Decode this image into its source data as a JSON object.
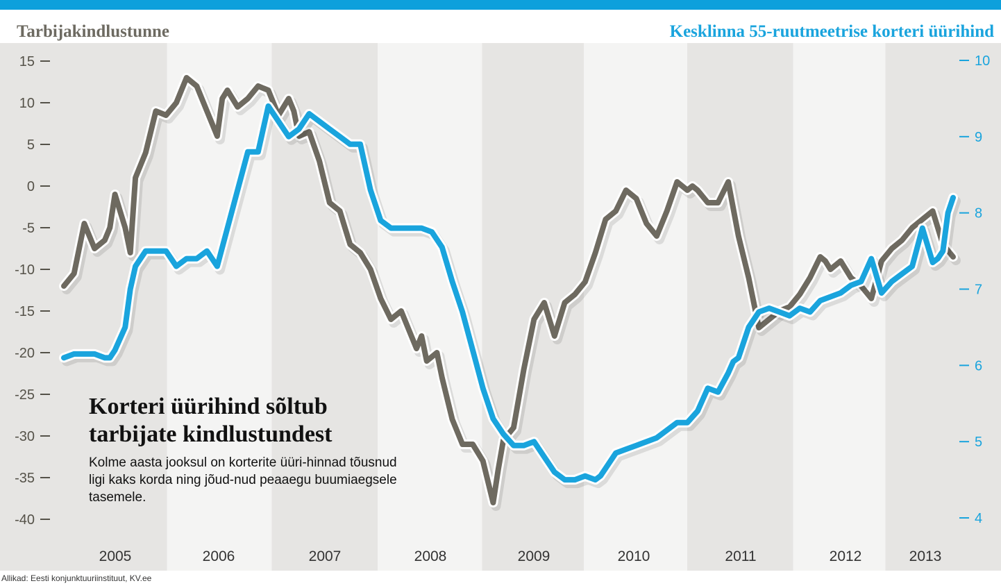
{
  "header": {
    "accent_color": "#0da0dc"
  },
  "chart_data": {
    "type": "line",
    "title": "Korteri üürihind sõltub tarbijate kindlustundest",
    "subtitle": "Kolme aasta jooksul on korterite üüri-hinnad tõusnud ligi kaks korda ning jõud-nud peaaegu buumiaegsele tasemele.",
    "source": "Allikad: Eesti konjunktuuriinstituut, KV.ee",
    "left_axis": {
      "title": "Tarbijakindlustunne",
      "ylim": [
        -40,
        15
      ],
      "ticks": [
        15,
        10,
        5,
        0,
        -5,
        -10,
        -15,
        -20,
        -25,
        -30,
        -35,
        -40
      ],
      "tick_labels": [
        "15",
        "10",
        "5",
        "0",
        "-5",
        "-10",
        "-15",
        "-20",
        "-25",
        "-30",
        "-35",
        "-40"
      ]
    },
    "right_axis": {
      "title": "Kesklinna 55-ruutmeetrise korteri üürihind",
      "ylim": [
        4,
        10
      ],
      "ticks": [
        10,
        9,
        8,
        7,
        6,
        5,
        4
      ],
      "tick_labels": [
        "10",
        "9",
        "8",
        "7",
        "6",
        "5",
        "4"
      ]
    },
    "x_axis": {
      "labels": [
        "2005",
        "2006",
        "2007",
        "2008",
        "2009",
        "2010",
        "2011",
        "2012",
        "2013"
      ],
      "range": [
        2004.6,
        2013.3
      ]
    },
    "colors": {
      "confidence": "#6e6a60",
      "rent": "#1aa4dd",
      "band_light": "#e6e5e3",
      "band_dark": "#f4f4f3"
    },
    "series": [
      {
        "key": "confidence",
        "axis": "left",
        "values": [
          [
            2004.6,
            -12
          ],
          [
            2004.7,
            -10.5
          ],
          [
            2004.8,
            -4.5
          ],
          [
            2004.9,
            -7.5
          ],
          [
            2005.0,
            -6.5
          ],
          [
            2005.05,
            -5
          ],
          [
            2005.1,
            -1
          ],
          [
            2005.2,
            -5
          ],
          [
            2005.25,
            -8
          ],
          [
            2005.3,
            1
          ],
          [
            2005.4,
            4
          ],
          [
            2005.5,
            9
          ],
          [
            2005.6,
            8.5
          ],
          [
            2005.7,
            10
          ],
          [
            2005.8,
            13
          ],
          [
            2005.9,
            12
          ],
          [
            2006.0,
            9
          ],
          [
            2006.1,
            6
          ],
          [
            2006.15,
            10.5
          ],
          [
            2006.2,
            11.5
          ],
          [
            2006.3,
            9.5
          ],
          [
            2006.4,
            10.5
          ],
          [
            2006.5,
            12
          ],
          [
            2006.6,
            11.5
          ],
          [
            2006.65,
            10
          ],
          [
            2006.7,
            8.5
          ],
          [
            2006.8,
            10.5
          ],
          [
            2006.85,
            9
          ],
          [
            2006.9,
            6
          ],
          [
            2007.0,
            6.5
          ],
          [
            2007.1,
            3
          ],
          [
            2007.2,
            -2
          ],
          [
            2007.3,
            -3
          ],
          [
            2007.35,
            -5
          ],
          [
            2007.4,
            -7
          ],
          [
            2007.5,
            -8
          ],
          [
            2007.6,
            -10
          ],
          [
            2007.7,
            -13.5
          ],
          [
            2007.8,
            -16
          ],
          [
            2007.9,
            -15
          ],
          [
            2008.0,
            -18
          ],
          [
            2008.05,
            -19.5
          ],
          [
            2008.1,
            -18
          ],
          [
            2008.15,
            -21
          ],
          [
            2008.25,
            -20
          ],
          [
            2008.3,
            -23
          ],
          [
            2008.4,
            -28
          ],
          [
            2008.5,
            -31
          ],
          [
            2008.6,
            -31
          ],
          [
            2008.7,
            -33
          ],
          [
            2008.8,
            -38
          ],
          [
            2008.85,
            -34
          ],
          [
            2008.9,
            -30.5
          ],
          [
            2009.0,
            -29
          ],
          [
            2009.1,
            -22
          ],
          [
            2009.2,
            -16
          ],
          [
            2009.3,
            -14
          ],
          [
            2009.4,
            -18
          ],
          [
            2009.5,
            -14
          ],
          [
            2009.6,
            -13
          ],
          [
            2009.7,
            -11.5
          ],
          [
            2009.8,
            -8
          ],
          [
            2009.9,
            -4
          ],
          [
            2010.0,
            -3
          ],
          [
            2010.1,
            -0.5
          ],
          [
            2010.2,
            -1.5
          ],
          [
            2010.3,
            -4.5
          ],
          [
            2010.4,
            -6
          ],
          [
            2010.5,
            -3
          ],
          [
            2010.6,
            0.5
          ],
          [
            2010.7,
            -0.5
          ],
          [
            2010.75,
            0
          ],
          [
            2010.8,
            -0.5
          ],
          [
            2010.9,
            -2
          ],
          [
            2011.0,
            -2
          ],
          [
            2011.1,
            0.5
          ],
          [
            2011.2,
            -6
          ],
          [
            2011.3,
            -11
          ],
          [
            2011.4,
            -17
          ],
          [
            2011.5,
            -16
          ],
          [
            2011.6,
            -15
          ],
          [
            2011.7,
            -14.5
          ],
          [
            2011.8,
            -13
          ],
          [
            2011.9,
            -11
          ],
          [
            2012.0,
            -8.5
          ],
          [
            2012.05,
            -9
          ],
          [
            2012.1,
            -10
          ],
          [
            2012.2,
            -9
          ],
          [
            2012.3,
            -11
          ],
          [
            2012.4,
            -12
          ],
          [
            2012.5,
            -13.5
          ],
          [
            2012.6,
            -9
          ],
          [
            2012.7,
            -7.5
          ],
          [
            2012.8,
            -6.5
          ],
          [
            2012.9,
            -5
          ],
          [
            2013.0,
            -4
          ],
          [
            2013.1,
            -3
          ],
          [
            2013.2,
            -7
          ],
          [
            2013.3,
            -8.5
          ]
        ]
      },
      {
        "key": "rent",
        "axis": "right",
        "values": [
          [
            2004.6,
            6.1
          ],
          [
            2004.7,
            6.15
          ],
          [
            2004.8,
            6.15
          ],
          [
            2004.9,
            6.15
          ],
          [
            2005.0,
            6.1
          ],
          [
            2005.05,
            6.1
          ],
          [
            2005.1,
            6.2
          ],
          [
            2005.2,
            6.5
          ],
          [
            2005.25,
            7.0
          ],
          [
            2005.3,
            7.3
          ],
          [
            2005.4,
            7.5
          ],
          [
            2005.5,
            7.5
          ],
          [
            2005.6,
            7.5
          ],
          [
            2005.7,
            7.3
          ],
          [
            2005.8,
            7.4
          ],
          [
            2005.9,
            7.4
          ],
          [
            2006.0,
            7.5
          ],
          [
            2006.1,
            7.3
          ],
          [
            2006.2,
            7.8
          ],
          [
            2006.3,
            8.3
          ],
          [
            2006.4,
            8.8
          ],
          [
            2006.5,
            8.8
          ],
          [
            2006.6,
            9.4
          ],
          [
            2006.7,
            9.2
          ],
          [
            2006.8,
            9.0
          ],
          [
            2006.9,
            9.1
          ],
          [
            2007.0,
            9.3
          ],
          [
            2007.1,
            9.2
          ],
          [
            2007.2,
            9.1
          ],
          [
            2007.3,
            9.0
          ],
          [
            2007.4,
            8.9
          ],
          [
            2007.5,
            8.9
          ],
          [
            2007.6,
            8.3
          ],
          [
            2007.7,
            7.9
          ],
          [
            2007.8,
            7.8
          ],
          [
            2007.9,
            7.8
          ],
          [
            2008.0,
            7.8
          ],
          [
            2008.1,
            7.8
          ],
          [
            2008.2,
            7.75
          ],
          [
            2008.3,
            7.55
          ],
          [
            2008.4,
            7.1
          ],
          [
            2008.5,
            6.7
          ],
          [
            2008.6,
            6.2
          ],
          [
            2008.7,
            5.7
          ],
          [
            2008.8,
            5.3
          ],
          [
            2008.9,
            5.1
          ],
          [
            2009.0,
            4.95
          ],
          [
            2009.1,
            4.95
          ],
          [
            2009.2,
            5.0
          ],
          [
            2009.3,
            4.8
          ],
          [
            2009.4,
            4.6
          ],
          [
            2009.5,
            4.5
          ],
          [
            2009.6,
            4.5
          ],
          [
            2009.7,
            4.55
          ],
          [
            2009.8,
            4.5
          ],
          [
            2009.85,
            4.55
          ],
          [
            2009.9,
            4.65
          ],
          [
            2010.0,
            4.85
          ],
          [
            2010.1,
            4.9
          ],
          [
            2010.2,
            4.95
          ],
          [
            2010.3,
            5.0
          ],
          [
            2010.4,
            5.05
          ],
          [
            2010.5,
            5.15
          ],
          [
            2010.6,
            5.25
          ],
          [
            2010.7,
            5.25
          ],
          [
            2010.8,
            5.4
          ],
          [
            2010.9,
            5.7
          ],
          [
            2011.0,
            5.65
          ],
          [
            2011.1,
            5.9
          ],
          [
            2011.15,
            6.05
          ],
          [
            2011.2,
            6.1
          ],
          [
            2011.3,
            6.5
          ],
          [
            2011.4,
            6.7
          ],
          [
            2011.5,
            6.75
          ],
          [
            2011.6,
            6.7
          ],
          [
            2011.7,
            6.65
          ],
          [
            2011.8,
            6.75
          ],
          [
            2011.9,
            6.7
          ],
          [
            2012.0,
            6.85
          ],
          [
            2012.1,
            6.9
          ],
          [
            2012.2,
            6.95
          ],
          [
            2012.3,
            7.05
          ],
          [
            2012.4,
            7.1
          ],
          [
            2012.5,
            7.4
          ],
          [
            2012.6,
            6.95
          ],
          [
            2012.7,
            7.1
          ],
          [
            2012.8,
            7.2
          ],
          [
            2012.9,
            7.3
          ],
          [
            2013.0,
            7.8
          ],
          [
            2013.1,
            7.35
          ],
          [
            2013.15,
            7.4
          ],
          [
            2013.2,
            7.5
          ],
          [
            2013.25,
            8.0
          ],
          [
            2013.3,
            8.2
          ]
        ]
      }
    ]
  }
}
